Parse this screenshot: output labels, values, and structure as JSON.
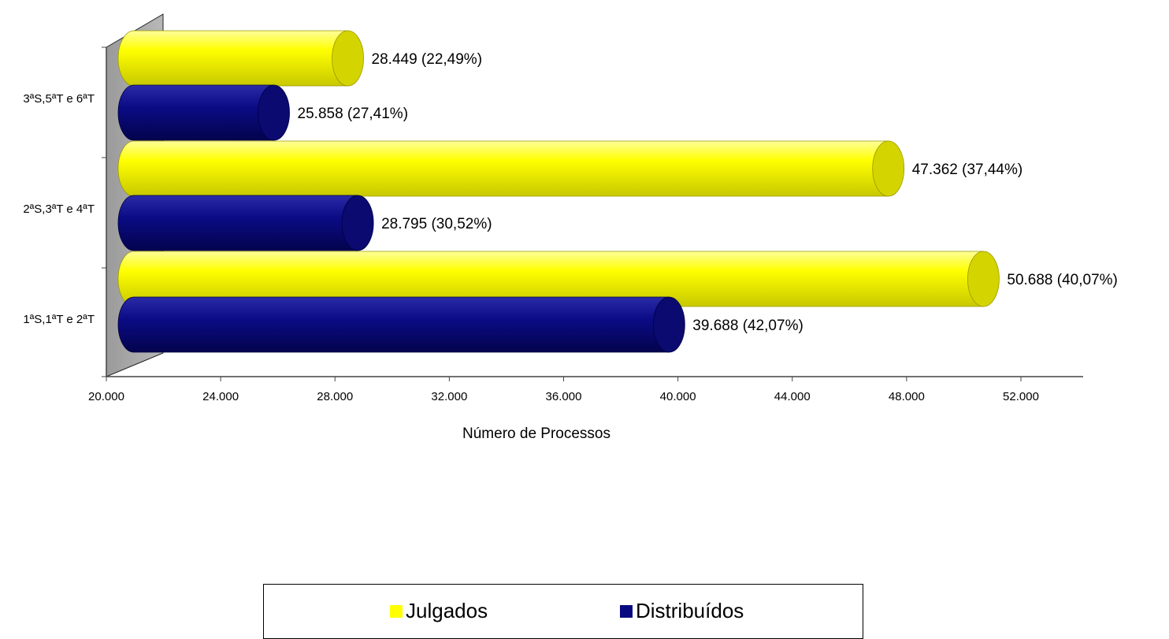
{
  "chart_data": {
    "type": "bar",
    "orientation": "horizontal",
    "categories": [
      "1ªS,1ªT e 2ªT",
      "2ªS,3ªT e 4ªT",
      "3ªS,5ªT e 6ªT"
    ],
    "series": [
      {
        "name": "Distribuídos",
        "color": "#0a0a80",
        "values": [
          39688,
          28795,
          25858
        ],
        "labels": [
          "39.688 (42,07%)",
          "28.795 (30,52%)",
          "25.858 (27,41%)"
        ]
      },
      {
        "name": "Julgados",
        "color": "#ffff00",
        "values": [
          50688,
          47362,
          28449
        ],
        "labels": [
          "50.688 (40,07%)",
          "47.362 (37,44%)",
          "28.449 (22,49%)"
        ]
      }
    ],
    "xlim": [
      20000,
      52000
    ],
    "xticks": [
      "20.000",
      "24.000",
      "28.000",
      "32.000",
      "36.000",
      "40.000",
      "44.000",
      "48.000",
      "52.000"
    ],
    "xlabel": "Número de Processos",
    "ylabel": "",
    "title": "",
    "legend": {
      "position": "bottom",
      "items": [
        "Julgados",
        "Distribuídos"
      ]
    }
  }
}
